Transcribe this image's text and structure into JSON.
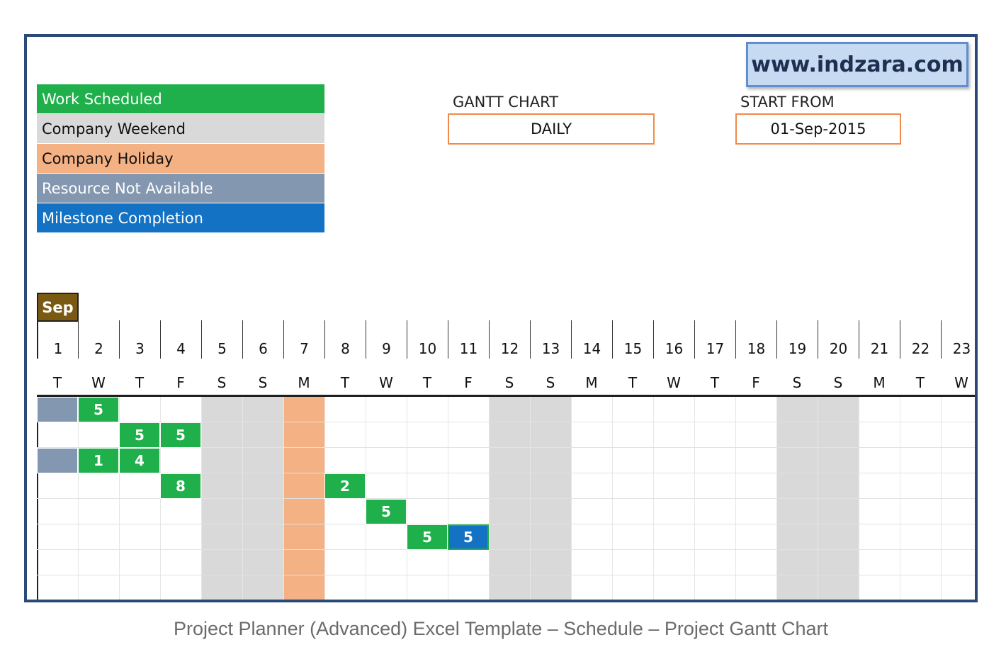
{
  "watermark": "www.indzara.com",
  "legend": [
    {
      "label": "Work Scheduled",
      "bg": "#20b04b",
      "fg": "#ffffff"
    },
    {
      "label": "Company Weekend",
      "bg": "#d9d9d9",
      "fg": "#111111"
    },
    {
      "label": "Company Holiday",
      "bg": "#f4b183",
      "fg": "#111111"
    },
    {
      "label": "Resource Not Available",
      "bg": "#8497b0",
      "fg": "#ffffff"
    },
    {
      "label": "Milestone Completion",
      "bg": "#1472c4",
      "fg": "#ffffff"
    }
  ],
  "gantt_control": {
    "label": "GANTT CHART",
    "value": "DAILY"
  },
  "start_control": {
    "label": "START FROM",
    "value": "01-Sep-2015"
  },
  "month": "Sep",
  "days": [
    {
      "num": "1",
      "dow": "T"
    },
    {
      "num": "2",
      "dow": "W"
    },
    {
      "num": "3",
      "dow": "T"
    },
    {
      "num": "4",
      "dow": "F"
    },
    {
      "num": "5",
      "dow": "S"
    },
    {
      "num": "6",
      "dow": "S"
    },
    {
      "num": "7",
      "dow": "M"
    },
    {
      "num": "8",
      "dow": "T"
    },
    {
      "num": "9",
      "dow": "W"
    },
    {
      "num": "10",
      "dow": "T"
    },
    {
      "num": "11",
      "dow": "F"
    },
    {
      "num": "12",
      "dow": "S"
    },
    {
      "num": "13",
      "dow": "S"
    },
    {
      "num": "14",
      "dow": "M"
    },
    {
      "num": "15",
      "dow": "T"
    },
    {
      "num": "16",
      "dow": "W"
    },
    {
      "num": "17",
      "dow": "T"
    },
    {
      "num": "18",
      "dow": "F"
    },
    {
      "num": "19",
      "dow": "S"
    },
    {
      "num": "20",
      "dow": "S"
    },
    {
      "num": "21",
      "dow": "M"
    },
    {
      "num": "22",
      "dow": "T"
    },
    {
      "num": "23",
      "dow": "W"
    }
  ],
  "weekend_days": [
    "5",
    "6",
    "12",
    "13",
    "19",
    "20"
  ],
  "holiday_days": [
    "7"
  ],
  "schedule_rows": [
    [
      {
        "day": "1",
        "type": "na"
      },
      {
        "day": "2",
        "type": "work",
        "value": "5"
      }
    ],
    [
      {
        "day": "3",
        "type": "work",
        "value": "5"
      },
      {
        "day": "4",
        "type": "work",
        "value": "5"
      }
    ],
    [
      {
        "day": "1",
        "type": "na"
      },
      {
        "day": "2",
        "type": "work",
        "value": "1"
      },
      {
        "day": "3",
        "type": "work",
        "value": "4"
      }
    ],
    [
      {
        "day": "4",
        "type": "work",
        "value": "8"
      },
      {
        "day": "8",
        "type": "work",
        "value": "2"
      }
    ],
    [
      {
        "day": "9",
        "type": "work",
        "value": "5"
      }
    ],
    [
      {
        "day": "10",
        "type": "work",
        "value": "5"
      },
      {
        "day": "11",
        "type": "milestone",
        "value": "5"
      }
    ],
    [],
    []
  ],
  "caption": "Project Planner (Advanced) Excel Template – Schedule – Project Gantt Chart"
}
